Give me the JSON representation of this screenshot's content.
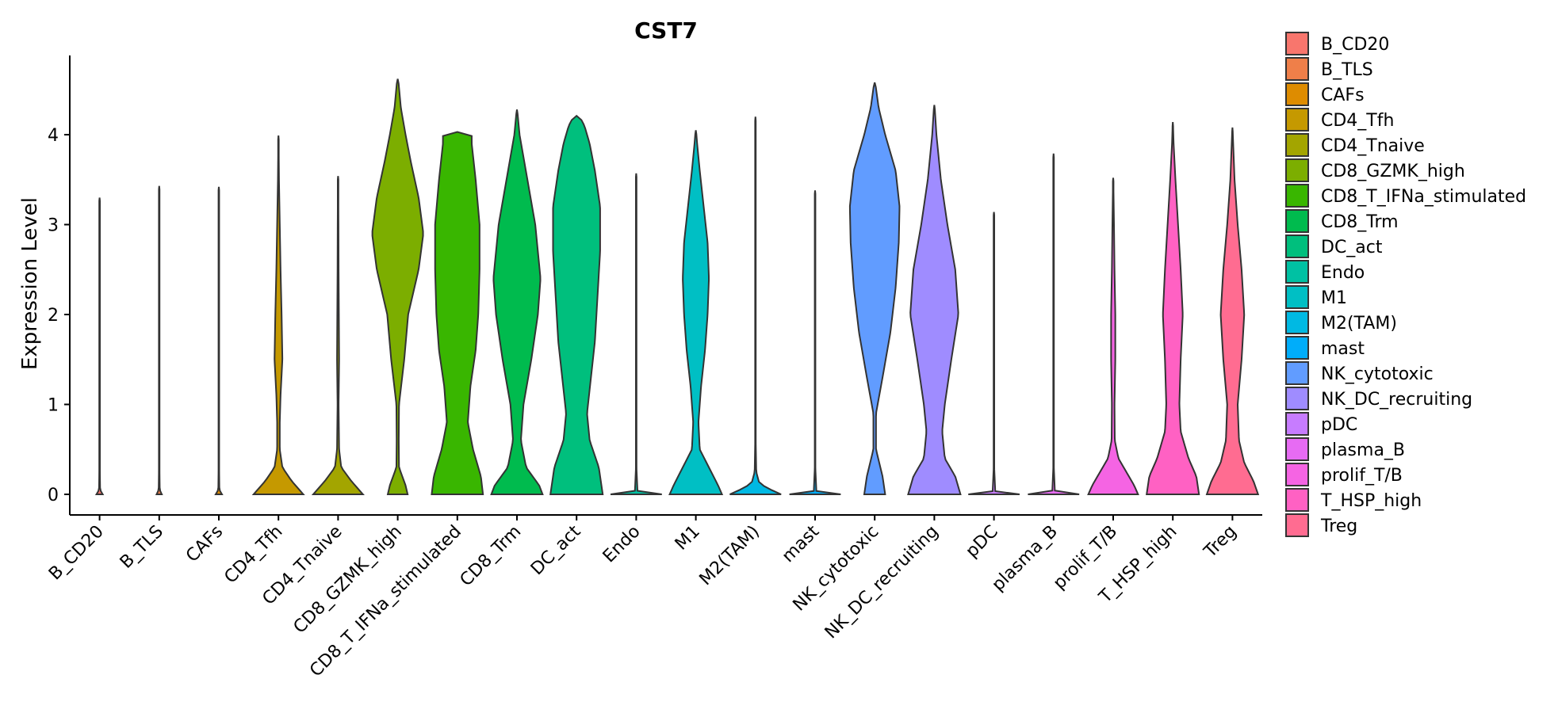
{
  "chart_data": {
    "type": "violin",
    "title": "CST7",
    "xlabel": "",
    "ylabel": "Expression Level",
    "ylim": [
      -0.25,
      4.9
    ],
    "yticks": [
      0,
      1,
      2,
      3,
      4
    ],
    "legend_position": "right",
    "categories": [
      {
        "name": "B_CD20",
        "color": "#F8766D",
        "max": 3.3,
        "profile": [
          [
            0,
            0.12
          ],
          [
            0.05,
            0.02
          ],
          [
            0.3,
            0.01
          ],
          [
            1,
            0.005
          ]
        ]
      },
      {
        "name": "B_TLS",
        "color": "#EF7F49",
        "max": 3.43,
        "profile": [
          [
            0,
            0.1
          ],
          [
            0.05,
            0.02
          ],
          [
            0.3,
            0.01
          ],
          [
            1,
            0.005
          ]
        ]
      },
      {
        "name": "CAFs",
        "color": "#DE8C00",
        "max": 3.42,
        "profile": [
          [
            0,
            0.12
          ],
          [
            0.05,
            0.02
          ],
          [
            0.3,
            0.01
          ],
          [
            1,
            0.005
          ]
        ]
      },
      {
        "name": "CD4_Tfh",
        "color": "#C59900",
        "max": 3.99,
        "profile": [
          [
            0,
            0.95
          ],
          [
            0.05,
            0.8
          ],
          [
            0.15,
            0.5
          ],
          [
            0.3,
            0.15
          ],
          [
            0.5,
            0.05
          ],
          [
            0.8,
            0.05
          ],
          [
            1.1,
            0.08
          ],
          [
            1.5,
            0.15
          ],
          [
            2.0,
            0.12
          ],
          [
            2.5,
            0.08
          ],
          [
            3.0,
            0.05
          ],
          [
            3.5,
            0.02
          ],
          [
            3.99,
            0.005
          ]
        ]
      },
      {
        "name": "CD4_Tnaive",
        "color": "#A3A500",
        "max": 3.54,
        "profile": [
          [
            0,
            0.95
          ],
          [
            0.05,
            0.8
          ],
          [
            0.15,
            0.5
          ],
          [
            0.3,
            0.12
          ],
          [
            0.5,
            0.04
          ],
          [
            1.0,
            0.02
          ],
          [
            1.5,
            0.04
          ],
          [
            2.0,
            0.03
          ],
          [
            2.5,
            0.02
          ],
          [
            3.0,
            0.015
          ],
          [
            3.54,
            0.005
          ]
        ]
      },
      {
        "name": "CD8_GZMK_high",
        "color": "#7CAE00",
        "max": 4.62,
        "profile": [
          [
            0,
            0.38
          ],
          [
            0.1,
            0.3
          ],
          [
            0.3,
            0.05
          ],
          [
            0.6,
            0.04
          ],
          [
            1.0,
            0.05
          ],
          [
            1.5,
            0.25
          ],
          [
            2.0,
            0.4
          ],
          [
            2.5,
            0.8
          ],
          [
            2.9,
            0.98
          ],
          [
            3.3,
            0.8
          ],
          [
            3.7,
            0.5
          ],
          [
            4.0,
            0.3
          ],
          [
            4.3,
            0.12
          ],
          [
            4.62,
            0.02
          ]
        ]
      },
      {
        "name": "CD8_T_IFNa_stimulated",
        "color": "#39B600",
        "max": 4.03,
        "profile": [
          [
            0,
            0.98
          ],
          [
            0.2,
            0.9
          ],
          [
            0.5,
            0.6
          ],
          [
            0.8,
            0.4
          ],
          [
            1.2,
            0.5
          ],
          [
            1.6,
            0.7
          ],
          [
            2.0,
            0.8
          ],
          [
            2.5,
            0.85
          ],
          [
            3.0,
            0.85
          ],
          [
            3.5,
            0.7
          ],
          [
            3.9,
            0.55
          ],
          [
            4.03,
            0.55
          ]
        ]
      },
      {
        "name": "CD8_Trm",
        "color": "#00BB4E",
        "max": 4.28,
        "profile": [
          [
            0,
            0.98
          ],
          [
            0.1,
            0.85
          ],
          [
            0.3,
            0.35
          ],
          [
            0.6,
            0.15
          ],
          [
            1.0,
            0.25
          ],
          [
            1.5,
            0.55
          ],
          [
            2.0,
            0.8
          ],
          [
            2.4,
            0.9
          ],
          [
            3.0,
            0.7
          ],
          [
            3.5,
            0.4
          ],
          [
            4.0,
            0.1
          ],
          [
            4.28,
            0.01
          ]
        ]
      },
      {
        "name": "DC_act",
        "color": "#00BF7D",
        "max": 4.21,
        "profile": [
          [
            0,
            1.0
          ],
          [
            0.3,
            0.85
          ],
          [
            0.6,
            0.5
          ],
          [
            0.9,
            0.4
          ],
          [
            1.3,
            0.55
          ],
          [
            1.7,
            0.7
          ],
          [
            2.2,
            0.8
          ],
          [
            2.7,
            0.9
          ],
          [
            3.2,
            0.9
          ],
          [
            3.6,
            0.7
          ],
          [
            3.9,
            0.5
          ],
          [
            4.1,
            0.3
          ],
          [
            4.21,
            0.1
          ]
        ]
      },
      {
        "name": "Endo",
        "color": "#00C1A3",
        "max": 3.57,
        "profile": [
          [
            0,
            0.98
          ],
          [
            0.03,
            0.05
          ],
          [
            0.3,
            0.01
          ],
          [
            1,
            0.005
          ]
        ]
      },
      {
        "name": "M1",
        "color": "#00BFC4",
        "max": 4.05,
        "profile": [
          [
            0,
            1.0
          ],
          [
            0.1,
            0.85
          ],
          [
            0.3,
            0.5
          ],
          [
            0.5,
            0.15
          ],
          [
            0.8,
            0.1
          ],
          [
            1.2,
            0.2
          ],
          [
            1.6,
            0.35
          ],
          [
            2.0,
            0.45
          ],
          [
            2.4,
            0.5
          ],
          [
            2.8,
            0.45
          ],
          [
            3.2,
            0.3
          ],
          [
            3.6,
            0.15
          ],
          [
            3.9,
            0.05
          ],
          [
            4.05,
            0.01
          ]
        ]
      },
      {
        "name": "M2(TAM)",
        "color": "#00B9E3",
        "max": 4.2,
        "profile": [
          [
            0,
            0.98
          ],
          [
            0.05,
            0.6
          ],
          [
            0.12,
            0.15
          ],
          [
            0.25,
            0.03
          ],
          [
            0.6,
            0.01
          ],
          [
            1,
            0.005
          ]
        ]
      },
      {
        "name": "mast",
        "color": "#00ADFA",
        "max": 3.38,
        "profile": [
          [
            0,
            0.98
          ],
          [
            0.03,
            0.05
          ],
          [
            0.3,
            0.01
          ],
          [
            1,
            0.005
          ]
        ]
      },
      {
        "name": "NK_cytotoxic",
        "color": "#619CFF",
        "max": 4.58,
        "profile": [
          [
            0,
            0.4
          ],
          [
            0.2,
            0.3
          ],
          [
            0.5,
            0.05
          ],
          [
            0.9,
            0.05
          ],
          [
            1.3,
            0.3
          ],
          [
            1.8,
            0.6
          ],
          [
            2.3,
            0.8
          ],
          [
            2.8,
            0.92
          ],
          [
            3.2,
            0.95
          ],
          [
            3.6,
            0.8
          ],
          [
            4.0,
            0.4
          ],
          [
            4.3,
            0.15
          ],
          [
            4.58,
            0.02
          ]
        ]
      },
      {
        "name": "NK_DC_recruiting",
        "color": "#9F8CFF",
        "max": 4.33,
        "profile": [
          [
            0,
            1.0
          ],
          [
            0.2,
            0.8
          ],
          [
            0.4,
            0.4
          ],
          [
            0.7,
            0.3
          ],
          [
            1.0,
            0.4
          ],
          [
            1.5,
            0.65
          ],
          [
            2.0,
            0.92
          ],
          [
            2.5,
            0.8
          ],
          [
            3.0,
            0.5
          ],
          [
            3.5,
            0.25
          ],
          [
            4.0,
            0.08
          ],
          [
            4.33,
            0.01
          ]
        ]
      },
      {
        "name": "pDC",
        "color": "#C77CFF",
        "max": 3.14,
        "profile": [
          [
            0,
            0.98
          ],
          [
            0.03,
            0.05
          ],
          [
            0.3,
            0.01
          ],
          [
            1,
            0.005
          ]
        ]
      },
      {
        "name": "plasma_B",
        "color": "#E76BF3",
        "max": 3.79,
        "profile": [
          [
            0,
            0.98
          ],
          [
            0.03,
            0.05
          ],
          [
            0.3,
            0.01
          ],
          [
            1,
            0.005
          ]
        ]
      },
      {
        "name": "prolif_T/B",
        "color": "#F564E3",
        "max": 3.52,
        "profile": [
          [
            0,
            0.95
          ],
          [
            0.1,
            0.8
          ],
          [
            0.25,
            0.5
          ],
          [
            0.4,
            0.2
          ],
          [
            0.6,
            0.06
          ],
          [
            1.0,
            0.05
          ],
          [
            1.5,
            0.08
          ],
          [
            2.0,
            0.08
          ],
          [
            2.5,
            0.05
          ],
          [
            3.0,
            0.03
          ],
          [
            3.52,
            0.005
          ]
        ]
      },
      {
        "name": "T_HSP_high",
        "color": "#FF61C3",
        "max": 4.14,
        "profile": [
          [
            0,
            1.0
          ],
          [
            0.2,
            0.9
          ],
          [
            0.4,
            0.6
          ],
          [
            0.7,
            0.3
          ],
          [
            1.0,
            0.25
          ],
          [
            1.5,
            0.3
          ],
          [
            2.0,
            0.38
          ],
          [
            2.5,
            0.3
          ],
          [
            3.0,
            0.2
          ],
          [
            3.5,
            0.1
          ],
          [
            3.9,
            0.03
          ],
          [
            4.14,
            0.005
          ]
        ]
      },
      {
        "name": "Treg",
        "color": "#FF6C91",
        "max": 4.08,
        "profile": [
          [
            0,
            0.98
          ],
          [
            0.15,
            0.8
          ],
          [
            0.35,
            0.45
          ],
          [
            0.6,
            0.25
          ],
          [
            1.0,
            0.2
          ],
          [
            1.5,
            0.35
          ],
          [
            2.0,
            0.45
          ],
          [
            2.5,
            0.35
          ],
          [
            3.0,
            0.2
          ],
          [
            3.5,
            0.08
          ],
          [
            4.08,
            0.005
          ]
        ]
      }
    ]
  }
}
